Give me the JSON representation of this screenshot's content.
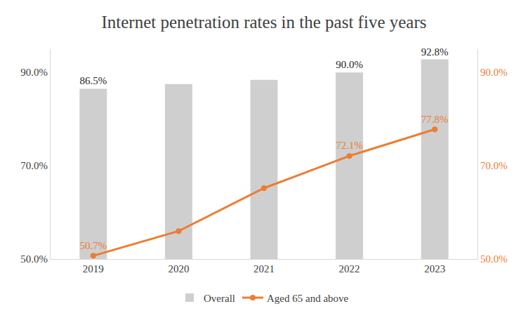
{
  "chart_data": {
    "type": "bar",
    "title": "Internet penetration rates in the past five years",
    "categories": [
      "2019",
      "2020",
      "2021",
      "2022",
      "2023"
    ],
    "series": [
      {
        "name": "Overall",
        "type": "bar",
        "color": "#cfcfcf",
        "values": [
          86.5,
          87.5,
          88.4,
          90.0,
          92.8
        ],
        "value_labels": [
          "86.5%",
          null,
          null,
          "90.0%",
          "92.8%"
        ]
      },
      {
        "name": "Aged 65 and above",
        "type": "line",
        "axis": "y2",
        "color": "#ed7d31",
        "marker": "circle",
        "values": [
          50.7,
          56.0,
          65.2,
          72.1,
          77.8
        ],
        "value_labels": [
          "50.7%",
          null,
          null,
          "72.1%",
          "77.8%"
        ]
      }
    ],
    "ylim": [
      50,
      95
    ],
    "yticks": [
      {
        "value": 50,
        "label": "50.0%"
      },
      {
        "value": 70,
        "label": "70.0%"
      },
      {
        "value": 90,
        "label": "90.0%"
      }
    ],
    "y2lim": [
      50,
      95
    ],
    "y2ticks": [
      {
        "value": 50,
        "label": "50.0%"
      },
      {
        "value": 70,
        "label": "70.0%"
      },
      {
        "value": 90,
        "label": "90.0%"
      }
    ],
    "data_labels": true,
    "grid": false,
    "legend": "bottom"
  }
}
